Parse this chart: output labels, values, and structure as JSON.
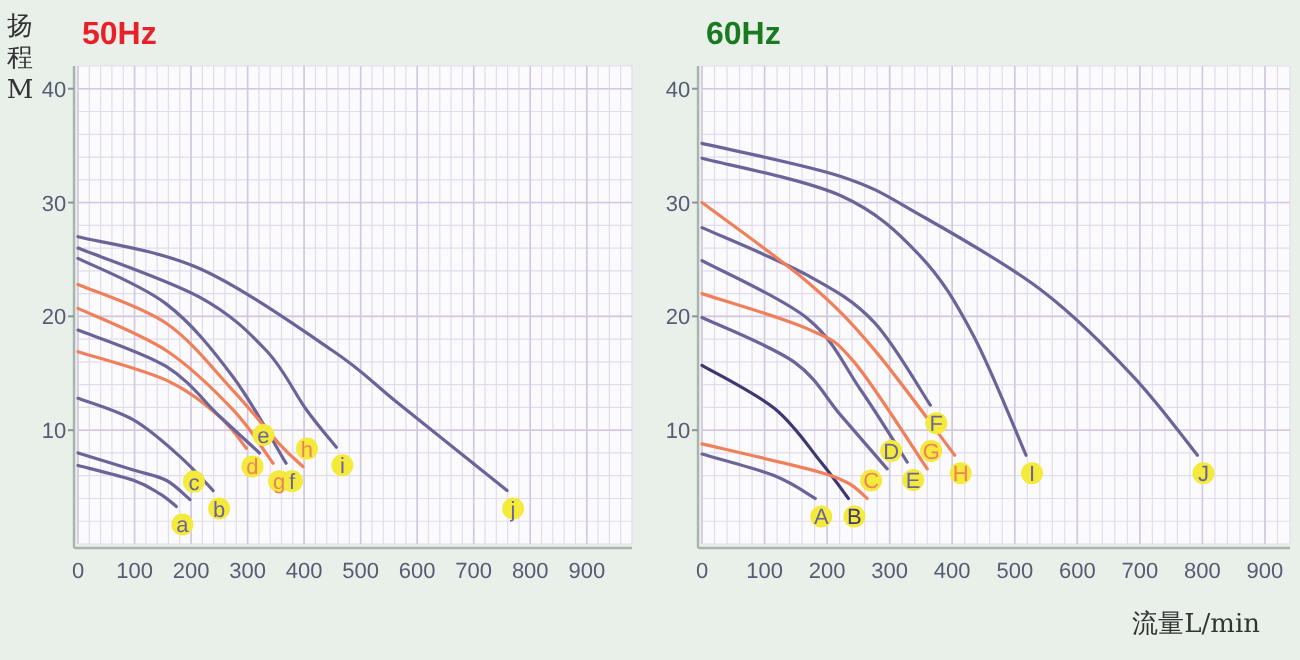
{
  "chart_data": [
    {
      "type": "line",
      "title": "50Hz",
      "ylabel": "扬程 M",
      "xlim": [
        0,
        980
      ],
      "ylim": [
        0,
        42
      ],
      "xticks": [
        0,
        100,
        200,
        300,
        400,
        500,
        600,
        700,
        800,
        900
      ],
      "yticks": [
        10,
        20,
        30,
        40
      ],
      "grid": true,
      "series": [
        {
          "name": "a",
          "color": "#6b6499",
          "x": [
            0,
            98,
            145,
            174
          ],
          "values": [
            6.9,
            5.6,
            4.4,
            3.3
          ]
        },
        {
          "name": "b",
          "color": "#6b6499",
          "x": [
            0,
            98,
            180,
            239
          ],
          "values": [
            12.8,
            10.9,
            7.7,
            4.7
          ]
        },
        {
          "name": "c",
          "color": "#6b6499",
          "x": [
            0,
            98,
            156,
            198
          ],
          "values": [
            8.0,
            6.5,
            5.6,
            3.9
          ]
        },
        {
          "name": "d",
          "color": "#f0805a",
          "x": [
            0,
            156,
            250,
            298
          ],
          "values": [
            16.9,
            14.4,
            11.2,
            8.4
          ]
        },
        {
          "name": "e",
          "color": "#6b6499",
          "x": [
            0,
            156,
            251,
            321
          ],
          "values": [
            18.8,
            15.6,
            11.2,
            8.0
          ]
        },
        {
          "name": "f",
          "color": "#6b6499",
          "x": [
            0,
            156,
            274,
            368
          ],
          "values": [
            25.1,
            21.1,
            14.7,
            7.1
          ]
        },
        {
          "name": "g",
          "color": "#f0805a",
          "x": [
            0,
            156,
            274,
            345
          ],
          "values": [
            20.7,
            17.0,
            11.8,
            7.1
          ]
        },
        {
          "name": "h",
          "color": "#f0805a",
          "x": [
            0,
            156,
            274,
            356,
            398
          ],
          "values": [
            22.8,
            19.4,
            13.5,
            8.8,
            6.8
          ]
        },
        {
          "name": "i",
          "color": "#6b6499",
          "x": [
            0,
            215,
            333,
            404,
            457
          ],
          "values": [
            26.0,
            21.7,
            17.0,
            11.8,
            8.5
          ]
        },
        {
          "name": "j",
          "color": "#6b6499",
          "x": [
            0,
            215,
            450,
            568,
            759
          ],
          "values": [
            27.0,
            24.2,
            17.0,
            12.3,
            4.7
          ]
        }
      ]
    },
    {
      "type": "line",
      "title": "60Hz",
      "xlabel": "流量L/min",
      "xlim": [
        0,
        940
      ],
      "ylim": [
        0,
        42
      ],
      "xticks": [
        0,
        100,
        200,
        300,
        400,
        500,
        600,
        700,
        800,
        900
      ],
      "yticks": [
        10,
        20,
        30,
        40
      ],
      "grid": true,
      "series": [
        {
          "name": "A",
          "color": "#6b6499",
          "x": [
            0,
            116,
            181
          ],
          "values": [
            7.9,
            6.0,
            4.0
          ]
        },
        {
          "name": "B",
          "color": "#3e3870",
          "x": [
            0,
            116,
            190,
            234
          ],
          "values": [
            15.7,
            11.9,
            7.2,
            4.0
          ]
        },
        {
          "name": "C",
          "color": "#f0805a",
          "x": [
            0,
            169,
            232,
            264
          ],
          "values": [
            8.8,
            6.6,
            5.4,
            4.0
          ]
        },
        {
          "name": "D",
          "color": "#6b6499",
          "x": [
            0,
            147,
            222,
            296
          ],
          "values": [
            19.9,
            16.0,
            11.3,
            6.6
          ]
        },
        {
          "name": "E",
          "color": "#6b6499",
          "x": [
            0,
            169,
            253,
            328
          ],
          "values": [
            24.9,
            19.8,
            13.6,
            7.2
          ]
        },
        {
          "name": "F",
          "color": "#6b6499",
          "x": [
            0,
            169,
            275,
            365
          ],
          "values": [
            27.8,
            23.6,
            19.5,
            12.2
          ]
        },
        {
          "name": "G",
          "color": "#f0805a",
          "x": [
            0,
            169,
            243,
            360
          ],
          "values": [
            22.0,
            18.9,
            16.0,
            6.6
          ]
        },
        {
          "name": "H",
          "color": "#f0805a",
          "x": [
            0,
            169,
            275,
            404
          ],
          "values": [
            30.0,
            23.0,
            17.1,
            7.8
          ]
        },
        {
          "name": "I",
          "color": "#6b6499",
          "x": [
            0,
            222,
            349,
            434,
            518
          ],
          "values": [
            33.9,
            30.6,
            25.3,
            18.3,
            7.8
          ]
        },
        {
          "name": "J",
          "color": "#6b6499",
          "x": [
            0,
            222,
            349,
            540,
            688,
            792
          ],
          "values": [
            35.2,
            32.3,
            28.9,
            22.4,
            14.8,
            7.8
          ]
        }
      ]
    }
  ]
}
